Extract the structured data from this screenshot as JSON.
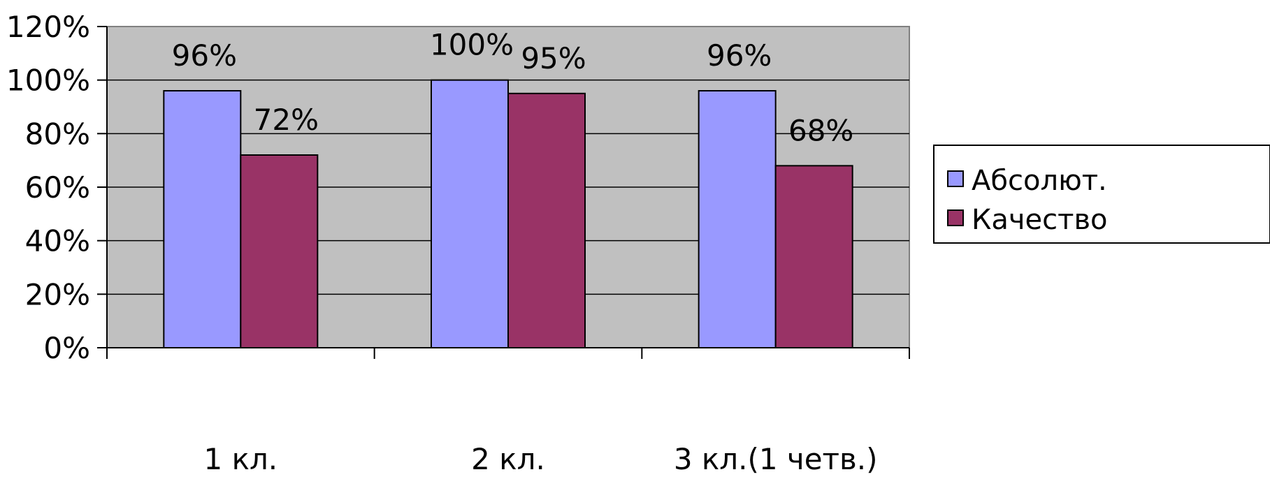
{
  "chart_data": {
    "type": "bar",
    "categories": [
      "1 кл.",
      "2 кл.",
      "3 кл.(1 четв.)"
    ],
    "series": [
      {
        "name": "Абсолют.",
        "color": "#9999FF",
        "values": [
          96,
          100,
          96
        ],
        "labels": [
          "96%",
          "100%",
          "96%"
        ]
      },
      {
        "name": "Качество",
        "color": "#993366",
        "values": [
          72,
          95,
          68
        ],
        "labels": [
          "72%",
          "95%",
          "68%"
        ]
      }
    ],
    "y_ticks": [
      "0%",
      "20%",
      "40%",
      "60%",
      "80%",
      "100%",
      "120%"
    ],
    "ylim": [
      0,
      120
    ],
    "grid": true,
    "plot_background": "#C0C0C0",
    "legend_position": "right"
  }
}
